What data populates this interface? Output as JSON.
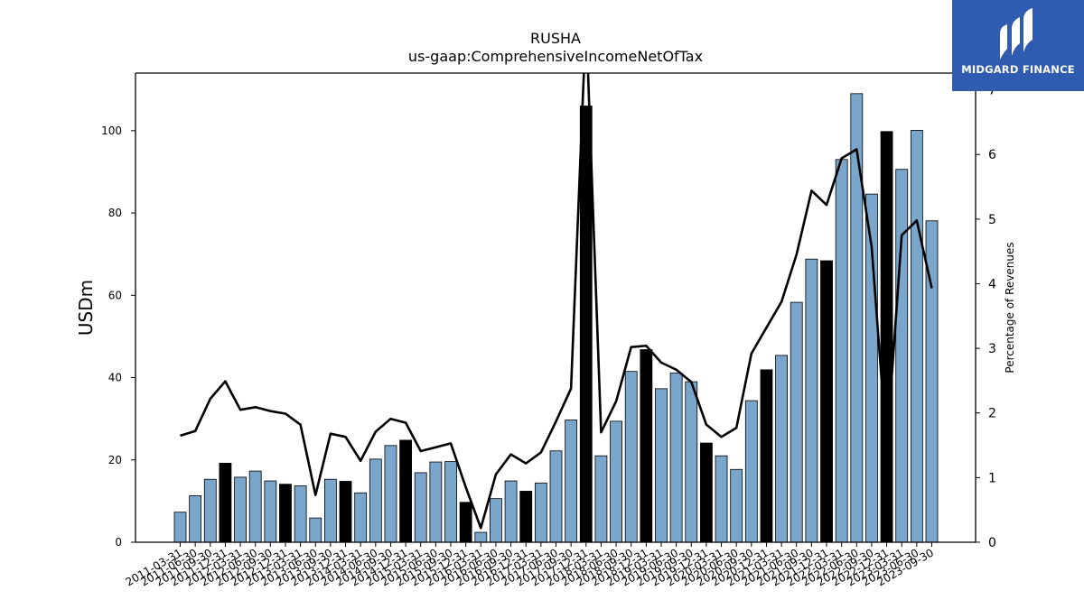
{
  "chart_data": {
    "type": "bar",
    "title": "RUSHA",
    "subtitle": "us-gaap:ComprehensiveIncomeNetOfTax",
    "ylabel": "USDm",
    "y2label": "Percentage of Revenues",
    "ylim": [
      0,
      114
    ],
    "y2lim": [
      0,
      7.26
    ],
    "yticks": [
      0,
      20,
      40,
      60,
      80,
      100
    ],
    "y2ticks": [
      0,
      1,
      2,
      3,
      4,
      5,
      6,
      7
    ],
    "categories": [
      "2011-03-31",
      "2011-06-30",
      "2011-09-30",
      "2011-12-31",
      "2012-03-31",
      "2012-06-30",
      "2012-09-30",
      "2012-12-31",
      "2013-03-31",
      "2013-06-30",
      "2013-09-30",
      "2013-12-31",
      "2014-03-31",
      "2014-06-30",
      "2014-09-30",
      "2014-12-31",
      "2015-03-31",
      "2015-06-30",
      "2015-09-30",
      "2015-12-31",
      "2016-03-31",
      "2016-06-30",
      "2016-09-30",
      "2016-12-31",
      "2017-03-31",
      "2017-06-30",
      "2017-09-30",
      "2017-12-31",
      "2018-03-31",
      "2018-06-30",
      "2018-09-30",
      "2018-12-31",
      "2019-03-31",
      "2019-06-30",
      "2019-09-30",
      "2019-12-31",
      "2020-03-31",
      "2020-06-30",
      "2020-09-30",
      "2020-12-31",
      "2021-03-31",
      "2021-06-30",
      "2021-09-30",
      "2021-12-31",
      "2022-03-31",
      "2022-06-30",
      "2022-09-30",
      "2022-12-31",
      "2023-03-31",
      "2023-06-30",
      "2023-09-30"
    ],
    "series": [
      {
        "chart_type": "bar",
        "values": [
          7.3,
          11.3,
          15.3,
          19.2,
          15.8,
          17.3,
          14.9,
          14.1,
          13.7,
          5.9,
          15.3,
          14.8,
          12.0,
          20.2,
          23.5,
          24.8,
          16.9,
          19.5,
          19.6,
          9.7,
          2.4,
          10.6,
          14.9,
          12.4,
          14.4,
          22.2,
          29.7,
          106.0,
          21.0,
          29.4,
          41.5,
          46.8,
          37.3,
          41.1,
          39.0,
          24.1,
          21.0,
          17.7,
          34.4,
          41.9,
          45.4,
          58.3,
          68.8,
          68.4,
          93.0,
          109.0,
          84.6,
          99.8,
          90.6,
          100.1,
          78.1
        ],
        "colors": [
          "#7aa6cb",
          "#7aa6cb",
          "#7aa6cb",
          "#000000",
          "#7aa6cb",
          "#7aa6cb",
          "#7aa6cb",
          "#000000",
          "#7aa6cb",
          "#7aa6cb",
          "#7aa6cb",
          "#000000",
          "#7aa6cb",
          "#7aa6cb",
          "#7aa6cb",
          "#000000",
          "#7aa6cb",
          "#7aa6cb",
          "#7aa6cb",
          "#000000",
          "#7aa6cb",
          "#7aa6cb",
          "#7aa6cb",
          "#000000",
          "#7aa6cb",
          "#7aa6cb",
          "#7aa6cb",
          "#000000",
          "#7aa6cb",
          "#7aa6cb",
          "#7aa6cb",
          "#000000",
          "#7aa6cb",
          "#7aa6cb",
          "#7aa6cb",
          "#000000",
          "#7aa6cb",
          "#7aa6cb",
          "#7aa6cb",
          "#000000",
          "#7aa6cb",
          "#7aa6cb",
          "#7aa6cb",
          "#000000",
          "#7aa6cb",
          "#7aa6cb",
          "#7aa6cb",
          "#000000",
          "#7aa6cb",
          "#7aa6cb",
          "#7aa6cb"
        ]
      },
      {
        "chart_type": "line",
        "axis": "right",
        "color": "#000000",
        "values": [
          1.65,
          1.72,
          2.22,
          2.49,
          2.05,
          2.09,
          2.03,
          1.99,
          1.82,
          0.73,
          1.68,
          1.63,
          1.26,
          1.71,
          1.91,
          1.85,
          1.41,
          1.47,
          1.53,
          0.85,
          0.22,
          1.05,
          1.36,
          1.22,
          1.39,
          1.87,
          2.38,
          8.1,
          1.7,
          2.18,
          3.02,
          3.04,
          2.78,
          2.67,
          2.48,
          1.82,
          1.63,
          1.77,
          2.92,
          3.32,
          3.72,
          4.45,
          5.44,
          5.22,
          5.94,
          6.08,
          4.57,
          1.45,
          4.75,
          4.98,
          3.93
        ]
      }
    ],
    "legend": "none",
    "grid": false
  },
  "logo": {
    "text": "MIDGARD FINANCE",
    "background": "#2f5bb0"
  },
  "colors": {
    "bar_default": "#7aa6cb",
    "bar_highlight": "#000000",
    "line": "#000000"
  }
}
